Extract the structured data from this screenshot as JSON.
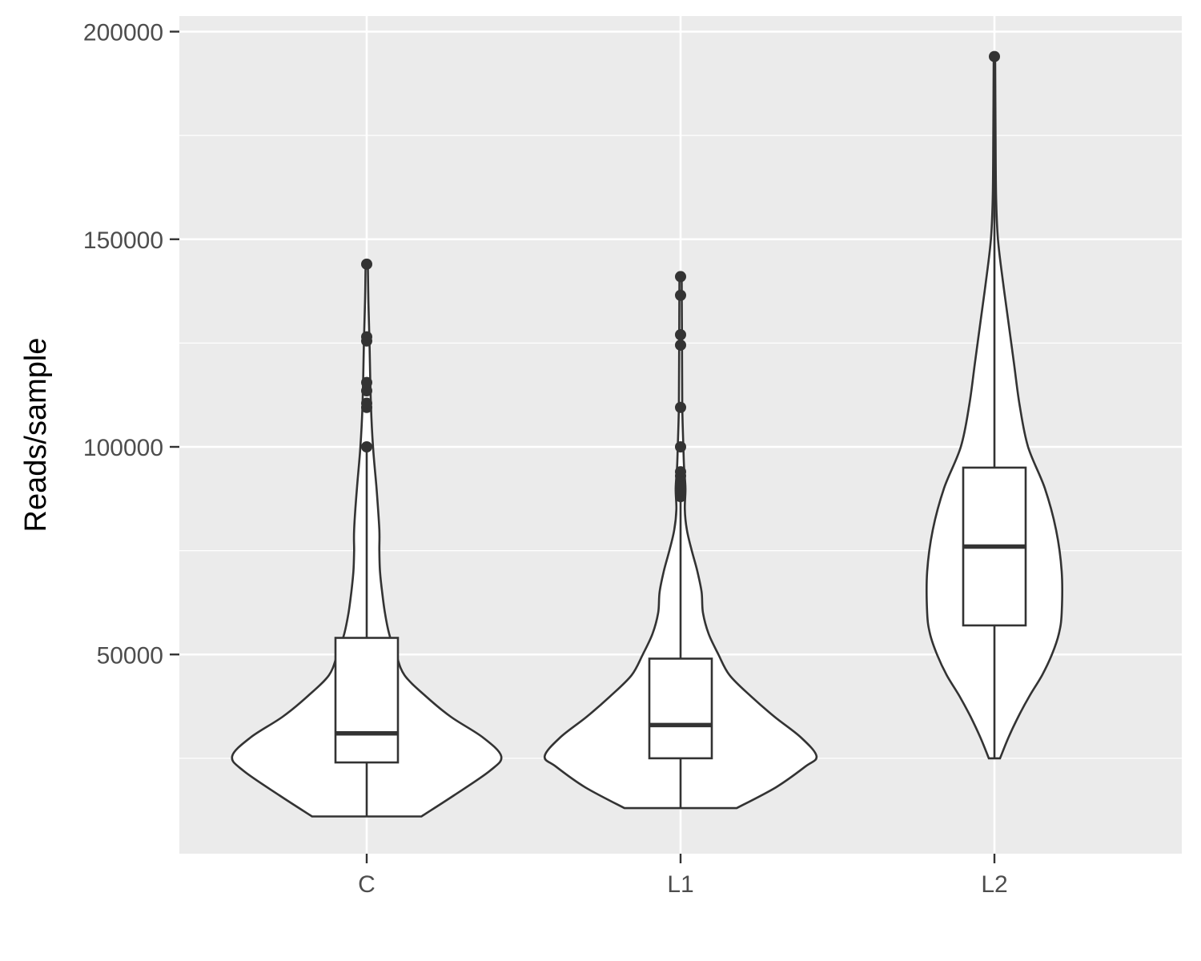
{
  "chart_data": {
    "type": "violin",
    "title": "",
    "xlabel": "",
    "ylabel": "Reads/sample",
    "ylim": [
      0,
      200000
    ],
    "grid": true,
    "legend": "none",
    "y_ticks": [
      50000,
      100000,
      150000,
      200000
    ],
    "y_tick_labels": [
      "50000",
      "100000",
      "150000",
      "200000"
    ],
    "categories": [
      "C",
      "L1",
      "L2"
    ],
    "colors": {
      "panel_background": "#ebebeb",
      "grid": "#ffffff",
      "fill": "#ffffff",
      "stroke": "#333333",
      "tick_text": "#4d4d4d"
    },
    "groups": [
      {
        "name": "C",
        "min": 11000,
        "q1": 24000,
        "median": 31000,
        "q3": 54000,
        "upper_whisker": 99000,
        "outliers": [
          100000,
          109500,
          110500,
          113500,
          115500,
          125500,
          126500,
          144000
        ],
        "density": [
          [
            11000,
            0.39
          ],
          [
            16000,
            0.62
          ],
          [
            22000,
            0.88
          ],
          [
            25500,
            0.96
          ],
          [
            30000,
            0.83
          ],
          [
            35000,
            0.6
          ],
          [
            40000,
            0.42
          ],
          [
            45000,
            0.27
          ],
          [
            50000,
            0.21
          ],
          [
            55000,
            0.16
          ],
          [
            60000,
            0.13
          ],
          [
            65000,
            0.11
          ],
          [
            70000,
            0.095
          ],
          [
            75000,
            0.09
          ],
          [
            80000,
            0.09
          ],
          [
            90000,
            0.07
          ],
          [
            100000,
            0.045
          ],
          [
            110000,
            0.03
          ],
          [
            125000,
            0.02
          ],
          [
            135000,
            0.012
          ],
          [
            144000,
            0.008
          ]
        ]
      },
      {
        "name": "L1",
        "min": 13000,
        "q1": 25000,
        "median": 33000,
        "q3": 49000,
        "upper_whisker": 88000,
        "outliers": [
          88000,
          89500,
          91000,
          93000,
          94000,
          100000,
          109500,
          124500,
          127000,
          136500,
          141000
        ],
        "density": [
          [
            13000,
            0.4
          ],
          [
            18000,
            0.68
          ],
          [
            23000,
            0.89
          ],
          [
            25500,
            0.97
          ],
          [
            30000,
            0.86
          ],
          [
            35000,
            0.67
          ],
          [
            40000,
            0.5
          ],
          [
            45000,
            0.35
          ],
          [
            50000,
            0.27
          ],
          [
            55000,
            0.2
          ],
          [
            60000,
            0.16
          ],
          [
            65000,
            0.15
          ],
          [
            70000,
            0.12
          ],
          [
            75000,
            0.08
          ],
          [
            80000,
            0.045
          ],
          [
            85000,
            0.03
          ],
          [
            90000,
            0.035
          ],
          [
            95000,
            0.025
          ],
          [
            100000,
            0.02
          ],
          [
            110000,
            0.012
          ],
          [
            125000,
            0.01
          ],
          [
            141000,
            0.008
          ]
        ]
      },
      {
        "name": "L2",
        "min": 25000,
        "q1": 57000,
        "median": 76000,
        "q3": 95000,
        "upper_whisker": 194000,
        "outliers": [
          194000
        ],
        "density": [
          [
            25000,
            0.04
          ],
          [
            30000,
            0.1
          ],
          [
            35000,
            0.17
          ],
          [
            40000,
            0.25
          ],
          [
            45000,
            0.34
          ],
          [
            50000,
            0.41
          ],
          [
            55000,
            0.46
          ],
          [
            60000,
            0.48
          ],
          [
            70000,
            0.48
          ],
          [
            80000,
            0.44
          ],
          [
            90000,
            0.36
          ],
          [
            100000,
            0.24
          ],
          [
            110000,
            0.18
          ],
          [
            120000,
            0.14
          ],
          [
            130000,
            0.1
          ],
          [
            140000,
            0.06
          ],
          [
            150000,
            0.025
          ],
          [
            160000,
            0.012
          ],
          [
            175000,
            0.008
          ],
          [
            194000,
            0.005
          ]
        ]
      }
    ]
  }
}
